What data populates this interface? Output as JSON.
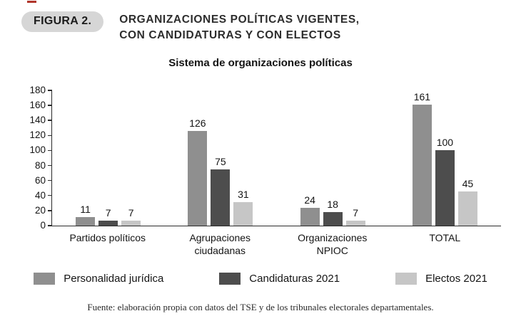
{
  "figure": {
    "badge": "FIGURA 2.",
    "title_line1": "ORGANIZACIONES POLÍTICAS VIGENTES,",
    "title_line2": "CON CANDIDATURAS Y CON ELECTOS"
  },
  "chart_data": {
    "type": "bar",
    "title": "Sistema de organizaciones políticas",
    "categories": [
      "Partidos políticos",
      "Agrupaciones\nciudadanas",
      "Organizaciones\nNPIOC",
      "TOTAL"
    ],
    "series": [
      {
        "name": "Personalidad jurídica",
        "color": "#8f8f8f",
        "values": [
          11,
          126,
          24,
          161
        ]
      },
      {
        "name": "Candidaturas 2021",
        "color": "#4d4d4d",
        "values": [
          7,
          75,
          18,
          100
        ]
      },
      {
        "name": "Electos 2021",
        "color": "#c6c6c6",
        "values": [
          7,
          31,
          7,
          45
        ]
      }
    ],
    "xlabel": "",
    "ylabel": "",
    "ylim": [
      0,
      180
    ],
    "ytick_step": 20,
    "grid": false,
    "legend_position": "bottom",
    "value_labels": true
  },
  "footer": {
    "source": "Fuente: elaboración propia con datos del TSE y de los tribunales electorales departamentales."
  }
}
